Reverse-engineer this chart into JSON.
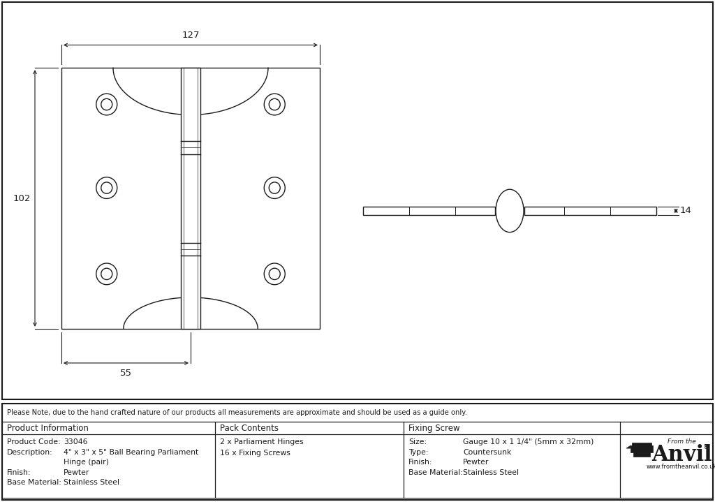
{
  "bg_color": "#ffffff",
  "line_color": "#1a1a1a",
  "note_text": "Please Note, due to the hand crafted nature of our products all measurements are approximate and should be used as a guide only.",
  "table_headers": [
    "Product Information",
    "Pack Contents",
    "Fixing Screw"
  ],
  "pack_contents": [
    "2 x Parliament Hinges",
    "16 x Fixing Screws"
  ],
  "prod_info": [
    [
      "Product Code:",
      "33046"
    ],
    [
      "Description:",
      "4\" x 3\" x 5\" Ball Bearing Parliament"
    ],
    [
      "",
      "Hinge (pair)"
    ],
    [
      "Finish:",
      "Pewter"
    ],
    [
      "Base Material:",
      "Stainless Steel"
    ]
  ],
  "fix_info": [
    [
      "Size:",
      "Gauge 10 x 1 1/4\" (5mm x 32mm)"
    ],
    [
      "Type:",
      "Countersunk"
    ],
    [
      "Finish:",
      "Pewter"
    ],
    [
      "Base Material:",
      "Stainless Steel"
    ]
  ],
  "dim_127": "127",
  "dim_102": "102",
  "dim_55": "55",
  "dim_14": "14"
}
